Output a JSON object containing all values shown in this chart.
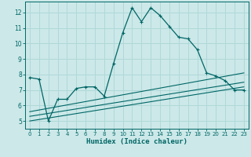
{
  "title": "",
  "xlabel": "Humidex (Indice chaleur)",
  "ylabel": "",
  "bg_color": "#cce8e8",
  "grid_color": "#b0d8d8",
  "line_color": "#006666",
  "xlim": [
    -0.5,
    23.5
  ],
  "ylim": [
    4.5,
    12.7
  ],
  "xtick_labels": [
    "0",
    "1",
    "2",
    "3",
    "4",
    "5",
    "6",
    "7",
    "8",
    "9",
    "10",
    "11",
    "12",
    "13",
    "14",
    "15",
    "16",
    "17",
    "18",
    "19",
    "20",
    "21",
    "22",
    "23"
  ],
  "xtick_vals": [
    0,
    1,
    2,
    3,
    4,
    5,
    6,
    7,
    8,
    9,
    10,
    11,
    12,
    13,
    14,
    15,
    16,
    17,
    18,
    19,
    20,
    21,
    22,
    23
  ],
  "yticks": [
    5,
    6,
    7,
    8,
    9,
    10,
    11,
    12
  ],
  "series1_x": [
    0,
    1,
    2,
    3,
    4,
    5,
    6,
    7,
    8,
    9,
    10,
    11,
    12,
    13,
    14,
    15,
    16,
    17,
    18,
    19,
    20,
    21,
    22,
    23
  ],
  "series1_y": [
    7.8,
    7.7,
    5.0,
    6.4,
    6.4,
    7.1,
    7.2,
    7.2,
    6.6,
    8.7,
    10.7,
    12.3,
    11.4,
    12.3,
    11.8,
    11.1,
    10.4,
    10.3,
    9.6,
    8.1,
    7.9,
    7.6,
    7.0,
    7.0
  ],
  "series2_x": [
    0,
    23
  ],
  "series2_y": [
    5.0,
    7.2
  ],
  "series3_x": [
    0,
    23
  ],
  "series3_y": [
    5.3,
    7.5
  ],
  "series4_x": [
    0,
    23
  ],
  "series4_y": [
    5.6,
    8.1
  ]
}
